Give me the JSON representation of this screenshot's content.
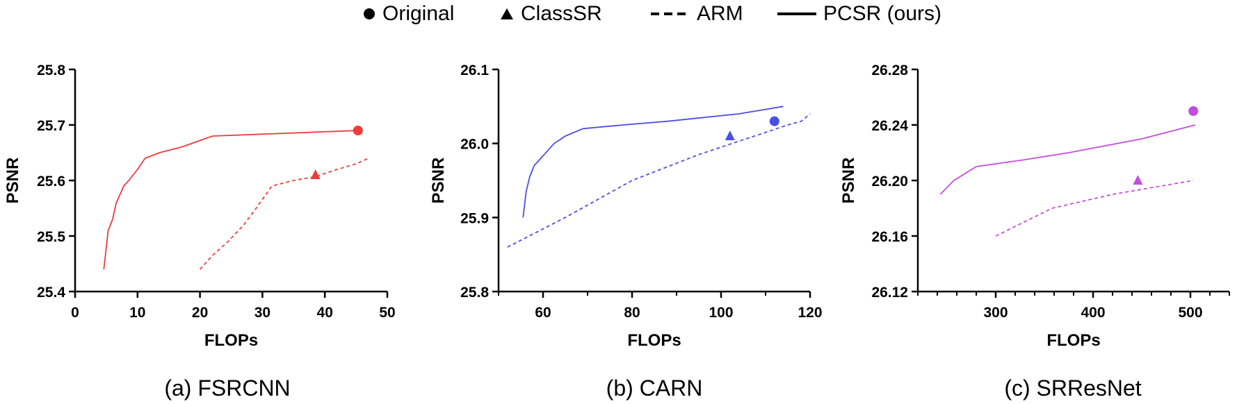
{
  "legend": {
    "original": "Original",
    "classsr": "ClassSR",
    "arm": "ARM",
    "pcsr": "PCSR (ours)"
  },
  "chart_data": [
    {
      "type": "line",
      "caption": "(a) FSRCNN",
      "xlabel": "FLOPs",
      "ylabel": "PSNR",
      "xlim": [
        0,
        50
      ],
      "ylim": [
        25.4,
        25.8
      ],
      "xticks": [
        "0",
        "10",
        "20",
        "30",
        "40",
        "50"
      ],
      "yticks": [
        "25.4",
        "25.5",
        "25.6",
        "25.7",
        "25.8"
      ],
      "color": "#ef3b3b",
      "series": [
        {
          "name": "PCSR (ours)",
          "style": "solid",
          "x": [
            4.6,
            5.3,
            6.0,
            6.6,
            7.2,
            7.8,
            8.6,
            10.0,
            11.2,
            13.5,
            17.0,
            22.0,
            45.2
          ],
          "y": [
            25.44,
            25.51,
            25.53,
            25.56,
            25.575,
            25.59,
            25.6,
            25.62,
            25.64,
            25.65,
            25.66,
            25.68,
            25.69
          ]
        },
        {
          "name": "ARM",
          "style": "dashed",
          "x": [
            20.0,
            22.0,
            24.5,
            27.0,
            29.0,
            31.5,
            35.0,
            38.5,
            42.0,
            45.0,
            47.0
          ],
          "y": [
            25.44,
            25.465,
            25.49,
            25.52,
            25.55,
            25.59,
            25.6,
            25.607,
            25.62,
            25.63,
            25.64
          ]
        },
        {
          "name": "Original",
          "marker": "circle",
          "x": [
            45.3
          ],
          "y": [
            25.69
          ]
        },
        {
          "name": "ClassSR",
          "marker": "triangle",
          "x": [
            38.5
          ],
          "y": [
            25.61
          ]
        }
      ]
    },
    {
      "type": "line",
      "caption": "(b) CARN",
      "xlabel": "FLOPs",
      "ylabel": "PSNR",
      "xlim": [
        50,
        120
      ],
      "ylim": [
        25.8,
        26.1
      ],
      "xticks": [
        "60",
        "80",
        "100",
        "120"
      ],
      "yticks": [
        "25.8",
        "25.9",
        "26.0",
        "26.1"
      ],
      "color": "#4a4ee8",
      "series": [
        {
          "name": "PCSR (ours)",
          "style": "solid",
          "x": [
            55.5,
            56.2,
            57.0,
            58.0,
            59.5,
            61.0,
            62.5,
            65.0,
            69.0,
            78.0,
            88.0,
            96.0,
            104.0,
            114.0
          ],
          "y": [
            25.9,
            25.935,
            25.955,
            25.97,
            25.98,
            25.99,
            26.0,
            26.01,
            26.02,
            26.025,
            26.03,
            26.035,
            26.04,
            26.05
          ]
        },
        {
          "name": "ARM",
          "style": "dashed",
          "x": [
            52.0,
            65.0,
            80.0,
            95.0,
            105.0,
            110.0,
            115.0,
            118.0,
            120.0
          ],
          "y": [
            25.86,
            25.9,
            25.95,
            25.985,
            26.005,
            26.015,
            26.025,
            26.03,
            26.04
          ]
        },
        {
          "name": "Original",
          "marker": "circle",
          "x": [
            112.0
          ],
          "y": [
            26.03
          ]
        },
        {
          "name": "ClassSR",
          "marker": "triangle",
          "x": [
            102.0
          ],
          "y": [
            26.01
          ]
        }
      ]
    },
    {
      "type": "line",
      "caption": "(c) SRResNet",
      "xlabel": "FLOPs",
      "ylabel": "PSNR",
      "xlim": [
        220,
        540
      ],
      "ylim": [
        26.12,
        26.28
      ],
      "xticks": [
        "300",
        "400",
        "500"
      ],
      "yticks": [
        "26.12",
        "26.16",
        "26.20",
        "26.24",
        "26.28"
      ],
      "color": "#c44bdf",
      "series": [
        {
          "name": "PCSR (ours)",
          "style": "solid",
          "x": [
            243,
            257,
            280,
            330,
            375,
            450,
            505
          ],
          "y": [
            26.19,
            26.2,
            26.21,
            26.215,
            26.22,
            26.23,
            26.24
          ]
        },
        {
          "name": "ARM",
          "style": "dashed",
          "x": [
            300,
            358,
            420,
            503
          ],
          "y": [
            26.16,
            26.18,
            26.19,
            26.2
          ]
        },
        {
          "name": "Original",
          "marker": "circle",
          "x": [
            503.0
          ],
          "y": [
            26.25
          ]
        },
        {
          "name": "ClassSR",
          "marker": "triangle",
          "x": [
            446.0
          ],
          "y": [
            26.2
          ]
        }
      ]
    }
  ]
}
